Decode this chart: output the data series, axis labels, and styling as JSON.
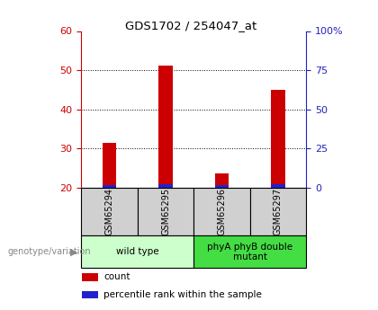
{
  "title": "GDS1702 / 254047_at",
  "samples": [
    "GSM65294",
    "GSM65295",
    "GSM65296",
    "GSM65297"
  ],
  "count_values": [
    31.5,
    51.2,
    23.5,
    45.0
  ],
  "percentile_values": [
    1.5,
    2.0,
    1.5,
    2.0
  ],
  "baseline": 20.0,
  "ylim_left": [
    20,
    60
  ],
  "ylim_right": [
    0,
    100
  ],
  "yticks_left": [
    20,
    30,
    40,
    50,
    60
  ],
  "yticks_right": [
    0,
    25,
    50,
    75,
    100
  ],
  "ytick_labels_right": [
    "0",
    "25",
    "50",
    "75",
    "100%"
  ],
  "bar_color_red": "#cc0000",
  "bar_color_blue": "#2222cc",
  "groups": [
    {
      "label": "wild type",
      "indices": [
        0,
        1
      ],
      "color": "#ccffcc"
    },
    {
      "label": "phyA phyB double\nmutant",
      "indices": [
        2,
        3
      ],
      "color": "#44dd44"
    }
  ],
  "legend_items": [
    {
      "label": "count",
      "color": "#cc0000"
    },
    {
      "label": "percentile rank within the sample",
      "color": "#2222cc"
    }
  ],
  "genotype_label": "genotype/variation",
  "left_axis_color": "#cc0000",
  "right_axis_color": "#2222bb",
  "sample_cell_color": "#d0d0d0",
  "bar_width": 0.25,
  "grid_color": "#000000"
}
